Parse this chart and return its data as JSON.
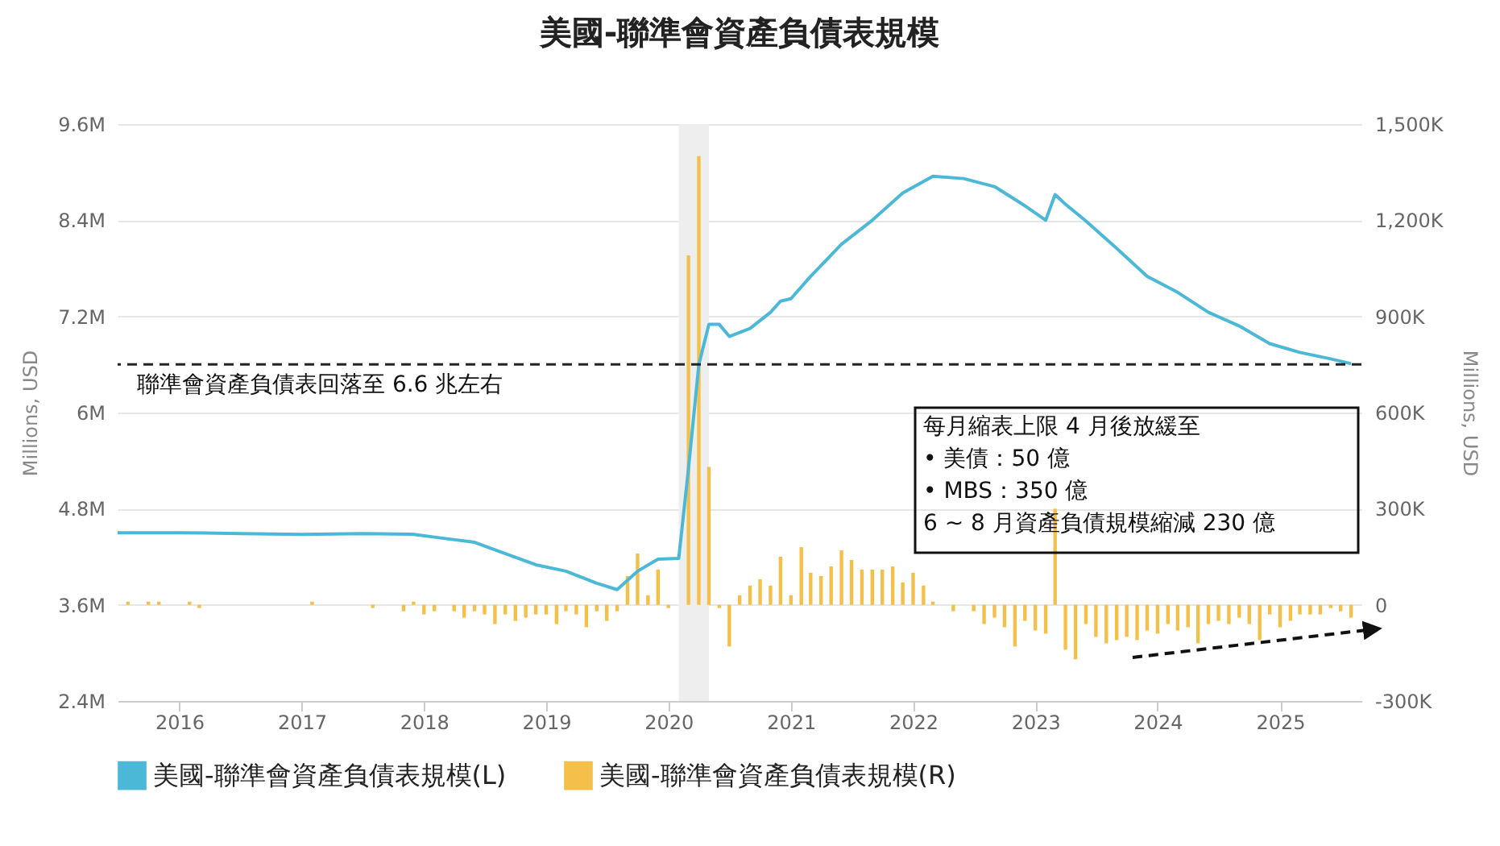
{
  "chart_data": {
    "type": "line",
    "title": "美國-聯準會資產負債表規模",
    "ylabel": "Millions, USD",
    "y2label": "Millions, USD",
    "xlim": [
      "2015-07",
      "2025-09"
    ],
    "xticks": [
      "2016",
      "2017",
      "2018",
      "2019",
      "2020",
      "2021",
      "2022",
      "2023",
      "2024",
      "2025"
    ],
    "ylim": [
      2400000,
      9600000
    ],
    "yticks": [
      {
        "value": 2400000,
        "label": "2.4M"
      },
      {
        "value": 3600000,
        "label": "3.6M"
      },
      {
        "value": 4800000,
        "label": "4.8M"
      },
      {
        "value": 6000000,
        "label": "6M"
      },
      {
        "value": 7200000,
        "label": "7.2M"
      },
      {
        "value": 8400000,
        "label": "8.4M"
      },
      {
        "value": 9600000,
        "label": "9.6M"
      }
    ],
    "y2lim": [
      -300,
      1500
    ],
    "y2ticks": [
      {
        "value": -300,
        "label": "-300K"
      },
      0,
      {
        "value": 300,
        "label": "300K"
      },
      {
        "value": 600,
        "label": "600K"
      },
      {
        "value": 900,
        "label": "900K"
      },
      {
        "value": 1200,
        "label": "1,200K"
      },
      {
        "value": 1500,
        "label": "1,500K"
      }
    ],
    "grid": "y",
    "legend": "bottom",
    "series": [
      {
        "name": "美國-聯準會資產負債表規模(L)",
        "color": "#4bb8d8",
        "x": [
          "2015-07",
          "2016-01",
          "2016-07",
          "2017-01",
          "2017-07",
          "2017-12",
          "2018-03",
          "2018-06",
          "2018-09",
          "2018-12",
          "2019-03",
          "2019-06",
          "2019-08",
          "2019-10",
          "2019-12",
          "2020-02",
          "2020-03",
          "2020-04",
          "2020-05",
          "2020-06",
          "2020-07",
          "2020-09",
          "2020-11",
          "2020-12",
          "2021-01",
          "2021-03",
          "2021-06",
          "2021-09",
          "2021-12",
          "2022-03",
          "2022-06",
          "2022-09",
          "2022-12",
          "2023-02",
          "2023-03",
          "2023-04",
          "2023-06",
          "2023-09",
          "2023-12",
          "2024-03",
          "2024-06",
          "2024-09",
          "2024-12",
          "2025-03",
          "2025-06",
          "2025-08"
        ],
        "values": [
          4500000,
          4500000,
          4490000,
          4480000,
          4490000,
          4480000,
          4430000,
          4380000,
          4240000,
          4100000,
          4020000,
          3870000,
          3790000,
          4020000,
          4170000,
          4180000,
          5300000,
          6600000,
          7100000,
          7100000,
          6950000,
          7050000,
          7250000,
          7390000,
          7420000,
          7700000,
          8100000,
          8400000,
          8740000,
          8950000,
          8920000,
          8820000,
          8580000,
          8400000,
          8720000,
          8600000,
          8390000,
          8050000,
          7700000,
          7500000,
          7250000,
          7080000,
          6860000,
          6750000,
          6670000,
          6610000
        ]
      },
      {
        "name": "美國-聯準會資產負債表規模(R)",
        "type": "bar",
        "axis": "y2",
        "color": "#f5c04a",
        "x": [
          "2015-08",
          "2015-09",
          "2015-10",
          "2015-11",
          "2015-12",
          "2016-01",
          "2016-02",
          "2016-03",
          "2016-04",
          "2016-05",
          "2016-06",
          "2016-07",
          "2016-08",
          "2016-09",
          "2016-10",
          "2016-11",
          "2016-12",
          "2017-01",
          "2017-02",
          "2017-03",
          "2017-04",
          "2017-05",
          "2017-06",
          "2017-07",
          "2017-08",
          "2017-09",
          "2017-10",
          "2017-11",
          "2017-12",
          "2018-01",
          "2018-02",
          "2018-03",
          "2018-04",
          "2018-05",
          "2018-06",
          "2018-07",
          "2018-08",
          "2018-09",
          "2018-10",
          "2018-11",
          "2018-12",
          "2019-01",
          "2019-02",
          "2019-03",
          "2019-04",
          "2019-05",
          "2019-06",
          "2019-07",
          "2019-08",
          "2019-09",
          "2019-10",
          "2019-11",
          "2019-12",
          "2020-01",
          "2020-02",
          "2020-03",
          "2020-04",
          "2020-05",
          "2020-06",
          "2020-07",
          "2020-08",
          "2020-09",
          "2020-10",
          "2020-11",
          "2020-12",
          "2021-01",
          "2021-02",
          "2021-03",
          "2021-04",
          "2021-05",
          "2021-06",
          "2021-07",
          "2021-08",
          "2021-09",
          "2021-10",
          "2021-11",
          "2021-12",
          "2022-01",
          "2022-02",
          "2022-03",
          "2022-04",
          "2022-05",
          "2022-06",
          "2022-07",
          "2022-08",
          "2022-09",
          "2022-10",
          "2022-11",
          "2022-12",
          "2023-01",
          "2023-02",
          "2023-03",
          "2023-04",
          "2023-05",
          "2023-06",
          "2023-07",
          "2023-08",
          "2023-09",
          "2023-10",
          "2023-11",
          "2023-12",
          "2024-01",
          "2024-02",
          "2024-03",
          "2024-04",
          "2024-05",
          "2024-06",
          "2024-07",
          "2024-08",
          "2024-09",
          "2024-10",
          "2024-11",
          "2024-12",
          "2025-01",
          "2025-02",
          "2025-03",
          "2025-04",
          "2025-05",
          "2025-06",
          "2025-07",
          "2025-08"
        ],
        "values": [
          10,
          0,
          10,
          10,
          0,
          0,
          10,
          -10,
          0,
          0,
          0,
          0,
          0,
          0,
          0,
          0,
          0,
          0,
          10,
          0,
          0,
          0,
          0,
          0,
          -10,
          0,
          0,
          -20,
          10,
          -30,
          -20,
          0,
          -20,
          -40,
          -20,
          -30,
          -60,
          -30,
          -50,
          -40,
          -30,
          -30,
          -60,
          -20,
          -30,
          -70,
          -20,
          -50,
          -20,
          90,
          160,
          30,
          110,
          -10,
          0,
          1090,
          1400,
          430,
          -10,
          -130,
          30,
          60,
          80,
          60,
          150,
          30,
          180,
          100,
          90,
          120,
          170,
          140,
          110,
          110,
          110,
          120,
          70,
          100,
          60,
          10,
          0,
          -20,
          0,
          -20,
          -60,
          -40,
          -70,
          -130,
          -50,
          -80,
          -90,
          300,
          -140,
          -170,
          -60,
          -100,
          -120,
          -110,
          -100,
          -110,
          -80,
          -90,
          -60,
          -80,
          -70,
          -120,
          -60,
          -50,
          -60,
          -40,
          -60,
          -110,
          -30,
          -70,
          -50,
          -30,
          -30,
          -30,
          -10,
          -20,
          -40
        ]
      }
    ],
    "ref_lines": [
      {
        "axis": "y",
        "value": 6600000,
        "label": "聯準會資產負債表回落至 6.6 兆左右",
        "color": "#222222",
        "line_style": "dashed"
      }
    ],
    "bands": [
      {
        "axis": "x",
        "from": "2020-02",
        "to": "2020-05",
        "color": "#eeeeee"
      }
    ],
    "annotations": [
      "每月縮表上限 4 月後放緩至\n•   美債：50 億\n•   MBS：350 億\n6 ~ 8 月資產負債規模縮減 230 億"
    ]
  }
}
